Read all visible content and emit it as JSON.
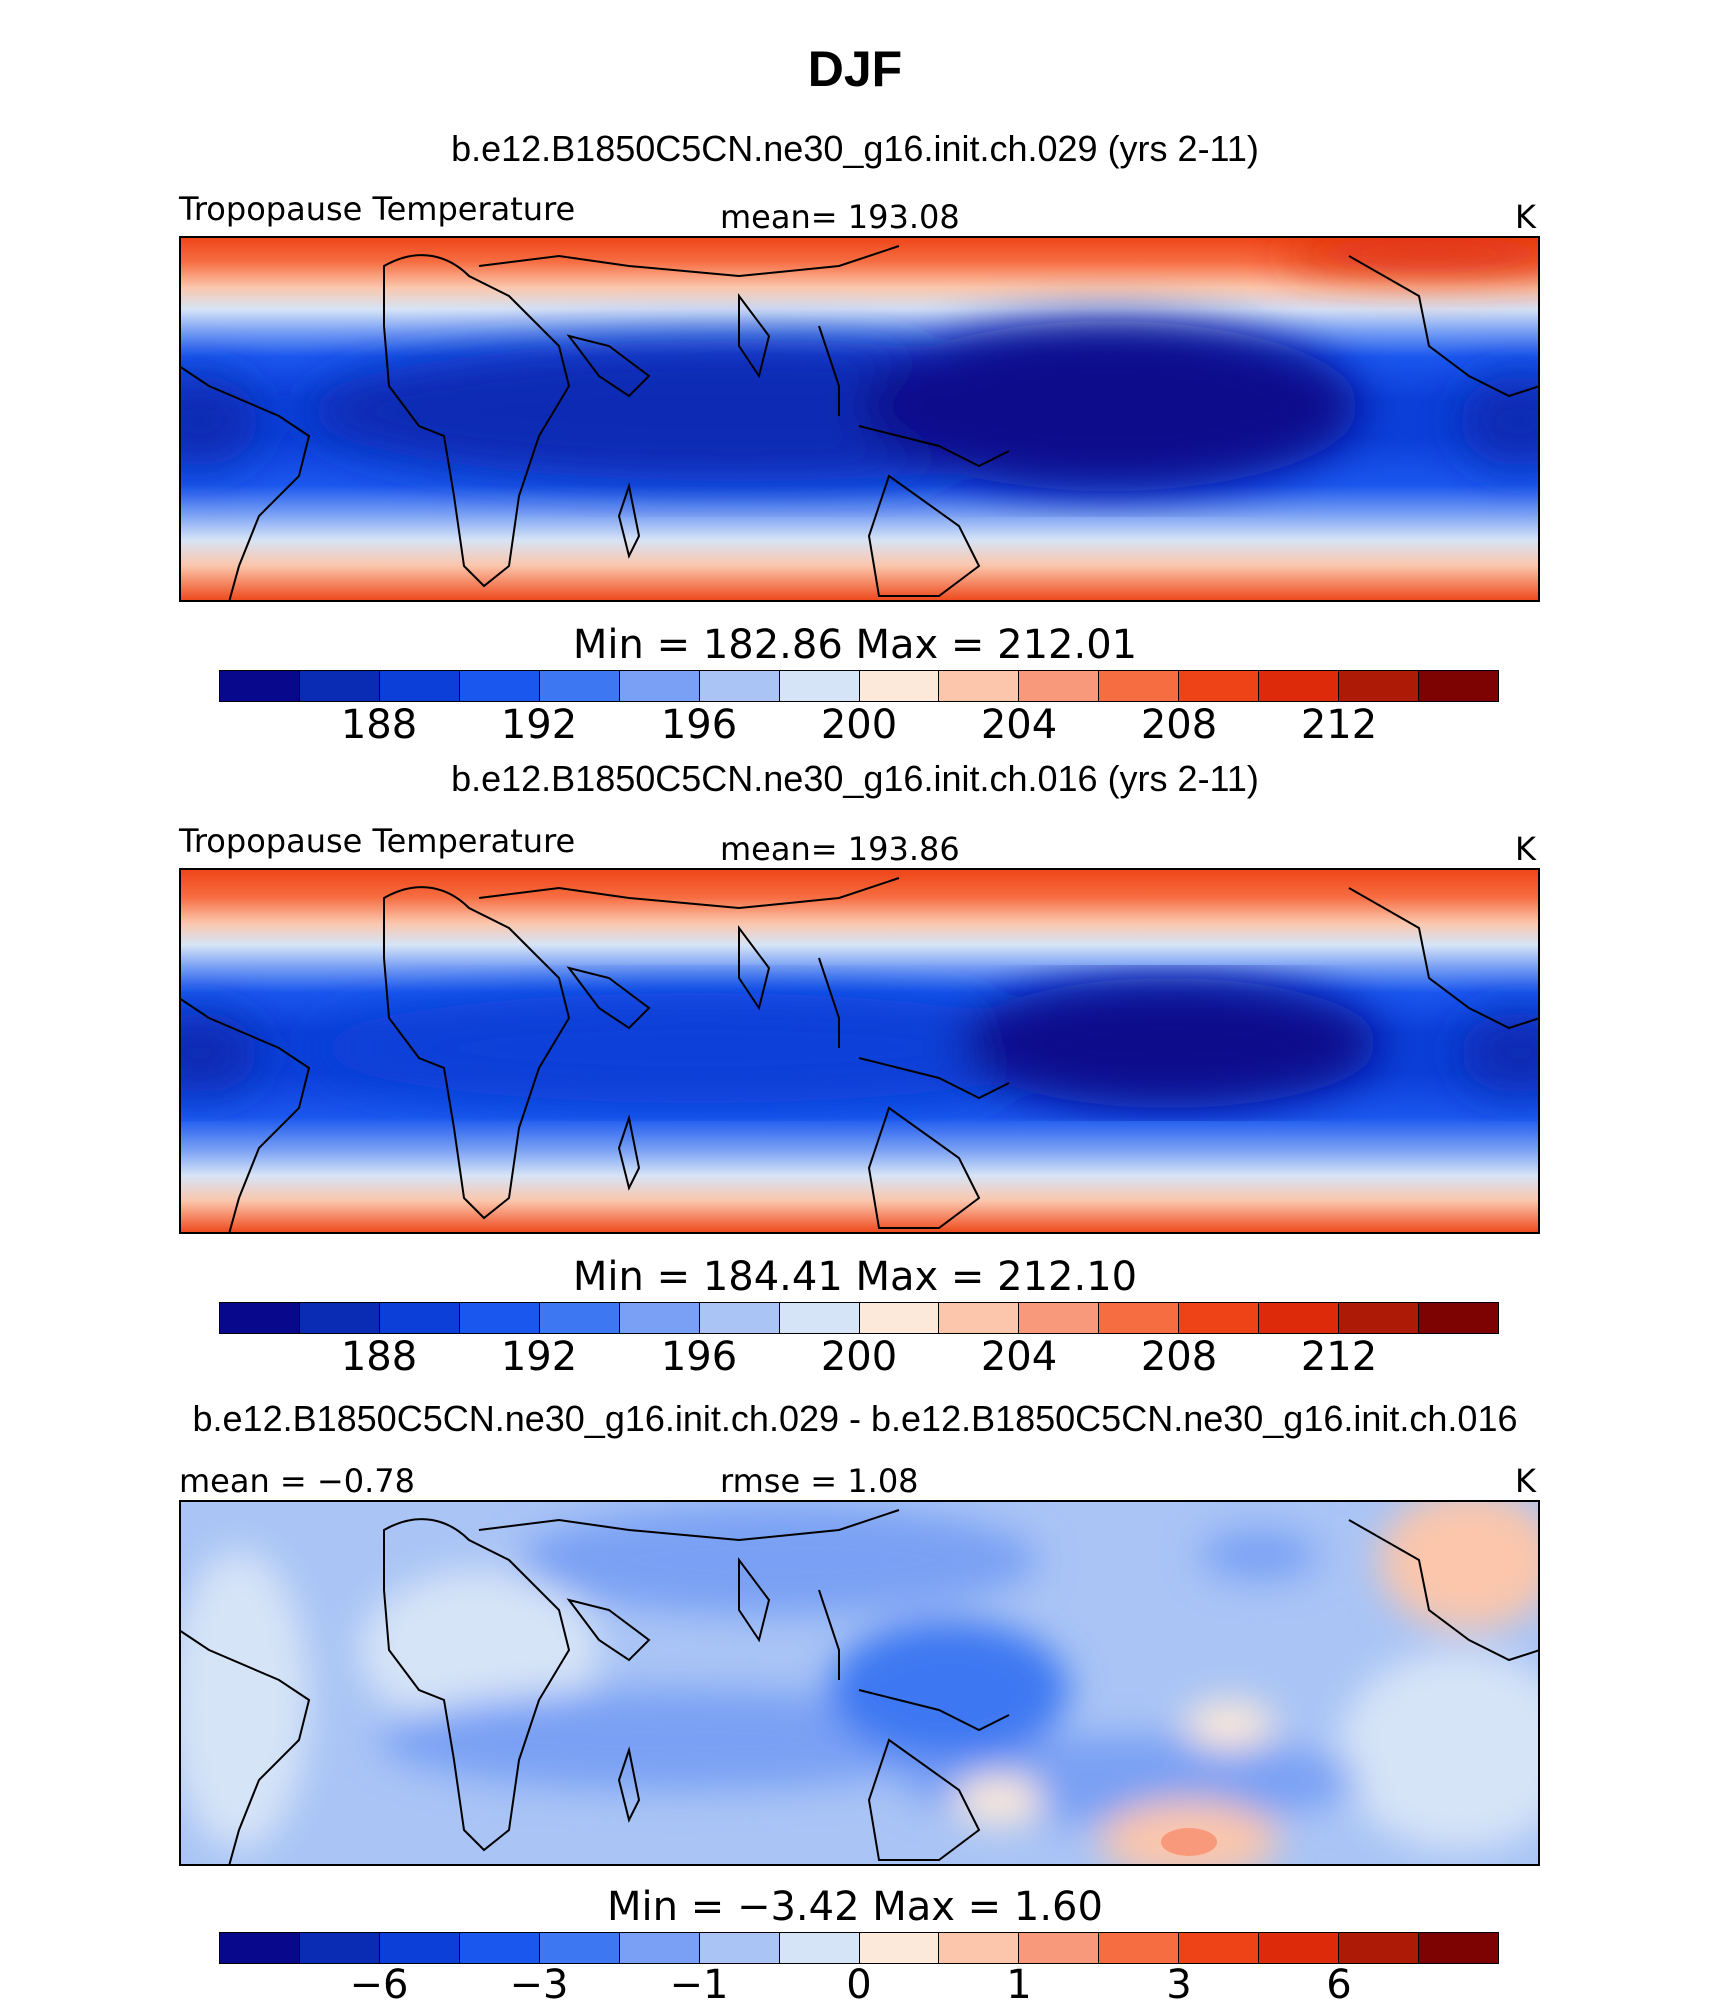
{
  "title": "DJF",
  "units": "K",
  "colors": [
    "#08088c",
    "#0a2bb4",
    "#0b3fd8",
    "#1a57ee",
    "#3d78f2",
    "#79a0f4",
    "#a9c4f5",
    "#d6e4f7",
    "#fde9d9",
    "#fbc6ac",
    "#f9997b",
    "#f76d42",
    "#ee4316",
    "#dc2a0a",
    "#ad1a06",
    "#7d0202"
  ],
  "chart_data": [
    {
      "type": "heatmap",
      "case": "b.e12.B1850C5CN.ne30_g16.init.ch.029 (yrs 2-11)",
      "variable": "Tropopause Temperature",
      "mean_label": "mean=  193.08",
      "units": "K",
      "minmax_label": "Min  =  182.86  Max  =  212.01",
      "min": 182.86,
      "max": 212.01,
      "mean": 193.08,
      "contour_levels": [
        186,
        188,
        190,
        192,
        194,
        196,
        198,
        200,
        202,
        204,
        206,
        208,
        210,
        212,
        214
      ],
      "colorbar_ticks": [
        "188",
        "192",
        "196",
        "200",
        "204",
        "208",
        "212"
      ]
    },
    {
      "type": "heatmap",
      "case": "b.e12.B1850C5CN.ne30_g16.init.ch.016 (yrs 2-11)",
      "variable": "Tropopause Temperature",
      "mean_label": "mean=  193.86",
      "units": "K",
      "minmax_label": "Min  =  184.41  Max  =  212.10",
      "min": 184.41,
      "max": 212.1,
      "mean": 193.86,
      "contour_levels": [
        186,
        188,
        190,
        192,
        194,
        196,
        198,
        200,
        202,
        204,
        206,
        208,
        210,
        212,
        214
      ],
      "colorbar_ticks": [
        "188",
        "192",
        "196",
        "200",
        "204",
        "208",
        "212"
      ]
    },
    {
      "type": "heatmap",
      "case": "b.e12.B1850C5CN.ne30_g16.init.ch.029 - b.e12.B1850C5CN.ne30_g16.init.ch.016",
      "mean_label": "mean =   −0.78",
      "rmse_label": "rmse =     1.08",
      "units": "K",
      "minmax_label": "Min  =    −3.42  Max  =     1.60",
      "min": -3.42,
      "max": 1.6,
      "mean": -0.78,
      "rmse": 1.08,
      "contour_levels": [
        -8,
        -6,
        -4,
        -3,
        -2,
        -1,
        -0.5,
        0,
        0.5,
        1,
        2,
        3,
        4,
        6,
        8
      ],
      "colorbar_ticks": [
        "−6",
        "−3",
        "−1",
        "0",
        "1",
        "3",
        "6"
      ]
    }
  ]
}
